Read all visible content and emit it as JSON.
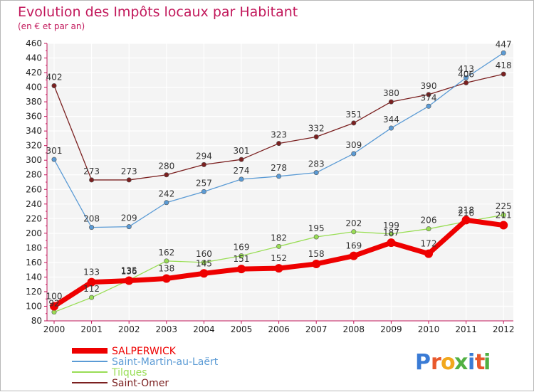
{
  "chart_data": {
    "type": "line",
    "title": "Evolution des Impôts locaux par Habitant",
    "subtitle": "(en € et par an)",
    "xlabel": "",
    "ylabel": "",
    "ylim": [
      80,
      460
    ],
    "yticks": [
      80,
      100,
      120,
      140,
      160,
      180,
      200,
      220,
      240,
      260,
      280,
      300,
      320,
      340,
      360,
      380,
      400,
      420,
      440,
      460
    ],
    "x": [
      "2000",
      "2001",
      "2002",
      "2003",
      "2004",
      "2005",
      "2006",
      "2007",
      "2008",
      "2009",
      "2010",
      "2011",
      "2012"
    ],
    "grid": true,
    "legend_position": "bottom-left",
    "series": [
      {
        "name": "SALPERWICK",
        "color": "#ee0000",
        "values": [
          100,
          133,
          135,
          138,
          145,
          151,
          152,
          158,
          169,
          187,
          172,
          218,
          211
        ],
        "labels": [
          "100",
          "133",
          "135",
          "138",
          "145",
          "151",
          "152",
          "158",
          "169",
          "187",
          "172",
          "218",
          "211"
        ]
      },
      {
        "name": "Saint-Martin-au-Laërt",
        "color": "#5b9bd5",
        "values": [
          301,
          208,
          209,
          242,
          257,
          274,
          278,
          283,
          309,
          344,
          374,
          413,
          447
        ],
        "labels": [
          "301",
          "208",
          "209",
          "242",
          "257",
          "274",
          "278",
          "283",
          "309",
          "344",
          "374",
          "413",
          "447"
        ]
      },
      {
        "name": "Tilques",
        "color": "#99dd55",
        "values": [
          92,
          112,
          136,
          162,
          160,
          169,
          182,
          195,
          202,
          199,
          206,
          216,
          225
        ],
        "labels": [
          "92",
          "112",
          "136",
          "162",
          "160",
          "169",
          "182",
          "195",
          "202",
          "199",
          "206",
          "216",
          "225"
        ]
      },
      {
        "name": "Saint-Omer",
        "color": "#7b2020",
        "values": [
          402,
          273,
          273,
          280,
          294,
          301,
          323,
          332,
          351,
          380,
          390,
          406,
          418
        ],
        "labels": [
          "402",
          "273",
          "273",
          "280",
          "294",
          "301",
          "323",
          "332",
          "351",
          "380",
          "390",
          "406",
          "418"
        ]
      }
    ]
  },
  "logo": {
    "text": "Proxiti",
    "letters": [
      "P",
      "r",
      "o",
      "x",
      "i",
      "t",
      "i"
    ],
    "colors": [
      "#3a7bd5",
      "#e8582c",
      "#f2a81d",
      "#52b043",
      "#3a7bd5",
      "#e8582c",
      "#52b043"
    ]
  }
}
